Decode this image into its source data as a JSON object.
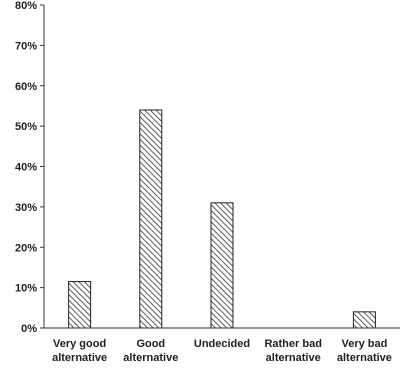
{
  "chart_data": {
    "type": "bar",
    "title": "",
    "xlabel": "",
    "ylabel": "",
    "categories": [
      [
        "Very good",
        "alternative"
      ],
      [
        "Good",
        "alternative"
      ],
      [
        "Undecided"
      ],
      [
        "Rather bad",
        "alternative"
      ],
      [
        "Very bad",
        "alternative"
      ]
    ],
    "values": [
      11.5,
      54,
      31,
      0,
      4
    ],
    "ylim": [
      0,
      80
    ],
    "yticks": [
      "0%",
      "10%",
      "20%",
      "30%",
      "40%",
      "50%",
      "60%",
      "70%",
      "80%"
    ],
    "grid": false,
    "legend": "none",
    "bar_fill": "diagonal-hatch",
    "colors": {
      "bar_stroke": "#222222",
      "hatch": "#333333",
      "axis": "#333333",
      "text": "#222222"
    }
  }
}
